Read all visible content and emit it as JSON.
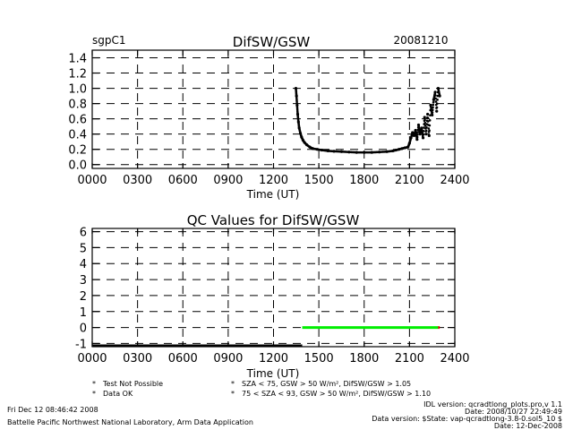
{
  "chart_data": [
    {
      "type": "scatter",
      "site": "sgpC1",
      "title": "DifSW/GSW",
      "date": "20081210",
      "xlabel": "Time (UT)",
      "xlim": [
        0,
        2400
      ],
      "ylim": [
        -0.05,
        1.5
      ],
      "x_ticks": [
        "0000",
        "0300",
        "0600",
        "0900",
        "1200",
        "1500",
        "1800",
        "2100",
        "2400"
      ],
      "y_ticks": [
        "0.0",
        "0.2",
        "0.4",
        "0.6",
        "0.8",
        "1.0",
        "1.2",
        "1.4"
      ],
      "y_tick_values": [
        0.0,
        0.2,
        0.4,
        0.6,
        0.8,
        1.0,
        1.2,
        1.4
      ],
      "grid": true,
      "series": [
        {
          "color": "#000000",
          "x": [
            1348,
            1352,
            1356,
            1360,
            1365,
            1370,
            1378,
            1386,
            1395,
            1405,
            1420,
            1440,
            1460,
            1490,
            1520,
            1560,
            1600,
            1650,
            1700,
            1750,
            1800,
            1850,
            1900,
            1950,
            1990,
            2010,
            2030,
            2050,
            2070,
            2090,
            2100,
            2110,
            2120,
            2130,
            2140,
            2150,
            2160,
            2170,
            2180,
            2190,
            2200,
            2210,
            2220,
            2230,
            2240,
            2250,
            2260,
            2270,
            2280,
            2290,
            2300
          ],
          "y": [
            1.0,
            0.9,
            0.78,
            0.66,
            0.56,
            0.48,
            0.41,
            0.36,
            0.32,
            0.29,
            0.26,
            0.23,
            0.21,
            0.2,
            0.19,
            0.18,
            0.175,
            0.17,
            0.165,
            0.16,
            0.16,
            0.16,
            0.165,
            0.17,
            0.18,
            0.19,
            0.2,
            0.21,
            0.22,
            0.23,
            0.28,
            0.35,
            0.42,
            0.38,
            0.45,
            0.33,
            0.52,
            0.4,
            0.48,
            0.35,
            0.62,
            0.4,
            0.66,
            0.38,
            0.78,
            0.65,
            0.85,
            0.95,
            0.7,
            1.0,
            0.9
          ]
        }
      ]
    },
    {
      "type": "scatter",
      "title": "QC Values for DifSW/GSW",
      "xlabel": "Time (UT)",
      "xlim": [
        0,
        2400
      ],
      "ylim": [
        -1.2,
        6.2
      ],
      "x_ticks": [
        "0000",
        "0300",
        "0600",
        "0900",
        "1200",
        "1500",
        "1800",
        "2100",
        "2400"
      ],
      "y_ticks": [
        "-1",
        "0",
        "1",
        "2",
        "3",
        "4",
        "5",
        "6"
      ],
      "y_tick_values": [
        -1,
        0,
        1,
        2,
        3,
        4,
        5,
        6
      ],
      "grid": true,
      "series": [
        {
          "color": "#000000",
          "segment": [
            0,
            1390
          ],
          "y": -1.2
        },
        {
          "color": "#00ee00",
          "segment": [
            1390,
            2290
          ],
          "y": 0
        },
        {
          "color": "#ee0000",
          "segment": [
            2290,
            2300
          ],
          "y": 0
        }
      ]
    }
  ],
  "legend": [
    {
      "symbol": "*",
      "color": "#000000",
      "label": "Test Not Possible"
    },
    {
      "symbol": "*",
      "color": "#00ee00",
      "label": "Data OK"
    },
    {
      "symbol": "*",
      "color": "#ff8c00",
      "label": "SZA < 75, GSW > 50 W/m², DifSW/GSW > 1.05"
    },
    {
      "symbol": "*",
      "color": "#ee0000",
      "label": "75 < SZA < 93, GSW > 50 W/m², DifSW/GSW > 1.10"
    }
  ],
  "footer": {
    "timestamp": "Fri Dec 12 08:46:42 2008",
    "org": "Battelle Pacific Northwest National Laboratory, Arm Data Application",
    "idl_version": "IDL version: qcradtlong_plots.pro,v 1.1",
    "date_line": "Date: 2008/10/27 22:49:49",
    "data_version": "Data version: $State: vap-qcradtlong-3.8-0.sol5_10 $",
    "date2": "Date: 12-Dec-2008"
  }
}
